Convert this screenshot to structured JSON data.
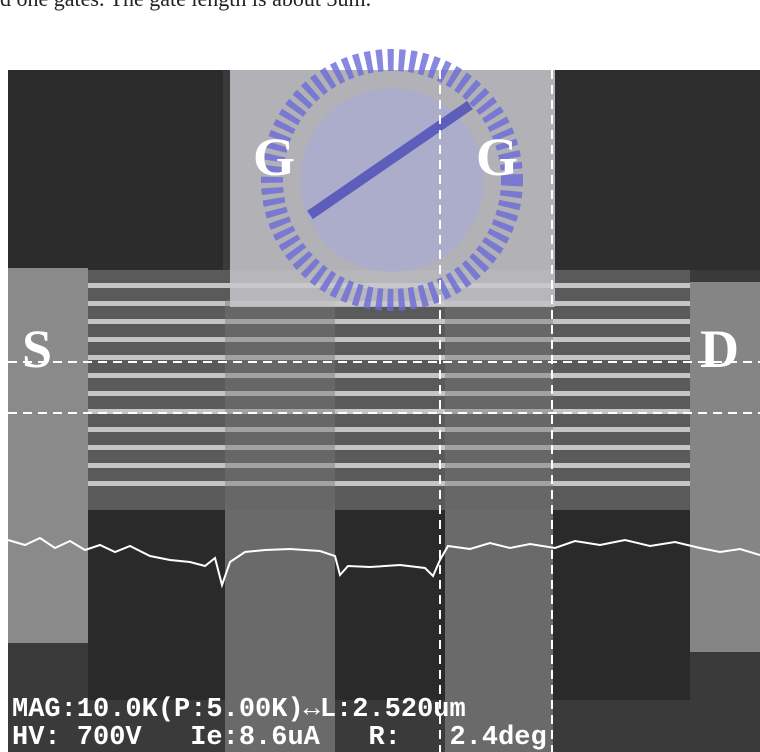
{
  "caption_fragment": "d one gates. The gate length is about 3um.",
  "labels": {
    "source": "S",
    "gate_left": "G",
    "gate_right": "G",
    "drain": "D"
  },
  "overlay": {
    "line1": "MAG:10.0K(P:5.00K)↔L:2.520um",
    "line2": "HV: 700V   Ie:8.6uA   R:   2.4deg"
  }
}
